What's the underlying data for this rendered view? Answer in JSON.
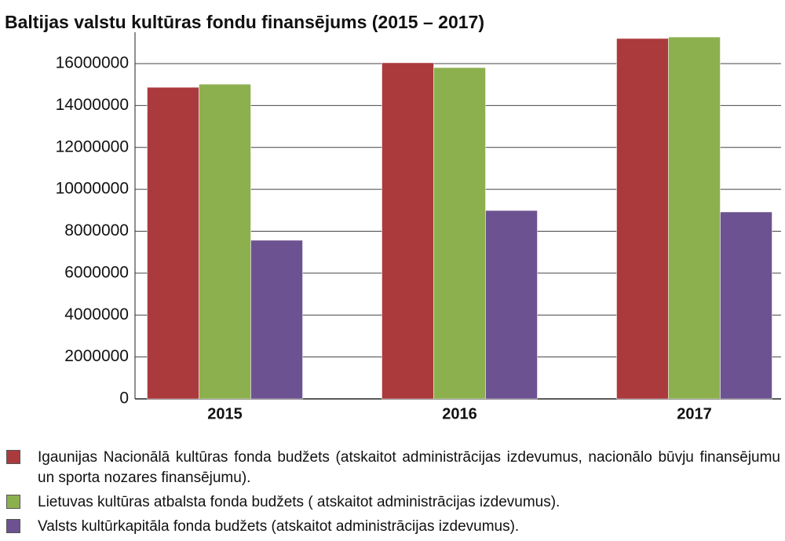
{
  "chart_data": {
    "type": "bar",
    "title": "Baltijas valstu kultūras fondu finansējums (2015 – 2017)",
    "categories": [
      "2015",
      "2016",
      "2017"
    ],
    "series": [
      {
        "name": "Igaunijas Nacionālā kultūras fonda budžets (atskaitot administrācijas izdevumus, nacionālo būvju finansējumu un sporta nozares finansējumu).",
        "color": "#ab3a3d",
        "values": [
          14870000,
          16040000,
          17200000
        ]
      },
      {
        "name": "Lietuvas kultūras atbalsta fonda budžets ( atskaitot administrācijas izdevumus).",
        "color": "#8db04f",
        "values": [
          15020000,
          15810000,
          17270000
        ]
      },
      {
        "name": "Valsts kultūrkapitāla fonda budžets (atskaitot administrācijas izdevumus).",
        "color": "#6d5291",
        "values": [
          7570000,
          8990000,
          8920000
        ]
      }
    ],
    "ylim": [
      0,
      17500000
    ],
    "yticks": [
      0,
      2000000,
      4000000,
      6000000,
      8000000,
      10000000,
      12000000,
      14000000,
      16000000
    ],
    "grid": true
  }
}
